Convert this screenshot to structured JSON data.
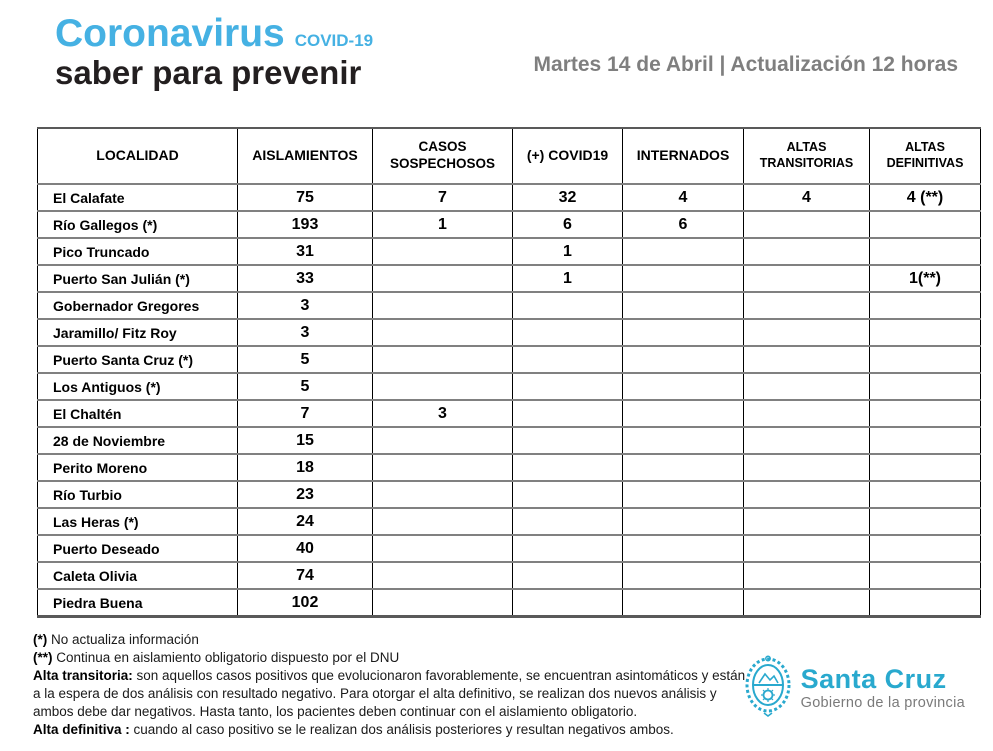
{
  "header": {
    "brand_title": "Coronavirus",
    "brand_sub": "COVID-19",
    "brand_tagline": "saber para prevenir",
    "update_text": "Martes 14 de Abril | Actualización 12 horas"
  },
  "table": {
    "columns": [
      "LOCALIDAD",
      "AISLAMIENTOS",
      "CASOS SOSPECHOSOS",
      "(+) COVID19",
      "INTERNADOS",
      "ALTAS TRANSITORIAS",
      "ALTAS DEFINITIVAS"
    ],
    "rows": [
      {
        "localidad": "El Calafate",
        "values": [
          "75",
          "7",
          "32",
          "4",
          "4",
          "4 (**)"
        ]
      },
      {
        "localidad": "Río Gallegos (*)",
        "values": [
          "193",
          "1",
          "6",
          "6",
          "",
          ""
        ]
      },
      {
        "localidad": "Pico Truncado",
        "values": [
          "31",
          "",
          "1",
          "",
          "",
          ""
        ]
      },
      {
        "localidad": "Puerto San Julián (*)",
        "values": [
          "33",
          "",
          "1",
          "",
          "",
          "1(**)"
        ]
      },
      {
        "localidad": "Gobernador Gregores",
        "values": [
          "3",
          "",
          "",
          "",
          "",
          ""
        ]
      },
      {
        "localidad": "Jaramillo/ Fitz Roy",
        "values": [
          "3",
          "",
          "",
          "",
          "",
          ""
        ]
      },
      {
        "localidad": "Puerto Santa Cruz (*)",
        "values": [
          "5",
          "",
          "",
          "",
          "",
          ""
        ]
      },
      {
        "localidad": "Los Antiguos (*)",
        "values": [
          "5",
          "",
          "",
          "",
          "",
          ""
        ]
      },
      {
        "localidad": "El Chaltén",
        "values": [
          "7",
          "3",
          "",
          "",
          "",
          ""
        ]
      },
      {
        "localidad": "28 de Noviembre",
        "values": [
          "15",
          "",
          "",
          "",
          "",
          ""
        ]
      },
      {
        "localidad": "Perito Moreno",
        "values": [
          "18",
          "",
          "",
          "",
          "",
          ""
        ]
      },
      {
        "localidad": "Río Turbio",
        "values": [
          "23",
          "",
          "",
          "",
          "",
          ""
        ]
      },
      {
        "localidad": "Las Heras (*)",
        "values": [
          "24",
          "",
          "",
          "",
          "",
          ""
        ]
      },
      {
        "localidad": "Puerto Deseado",
        "values": [
          "40",
          "",
          "",
          "",
          "",
          ""
        ]
      },
      {
        "localidad": "Caleta Olivia",
        "values": [
          "74",
          "",
          "",
          "",
          "",
          ""
        ]
      },
      {
        "localidad": "Piedra Buena",
        "values": [
          "102",
          "",
          "",
          "",
          "",
          ""
        ]
      }
    ]
  },
  "footnotes": [
    {
      "bold": "(*)",
      "text": " No actualiza información"
    },
    {
      "bold": "(**)",
      "text": " Continua en aislamiento obligatorio dispuesto por el DNU"
    },
    {
      "bold": "Alta transitoria:",
      "text": " son aquellos casos positivos que evolucionaron favorablemente, se encuentran asintomáticos y están a la espera de dos análisis con resultado negativo. Para otorgar el alta definitivo, se realizan dos nuevos análisis y ambos debe dar negativos. Hasta tanto, los pacientes deben continuar con el aislamiento obligatorio."
    },
    {
      "bold": "Alta definitiva :",
      "text": " cuando al caso positivo se le realizan dos análisis posteriores y resultan negativos ambos."
    }
  ],
  "logo": {
    "name": "Santa Cruz",
    "subtitle": "Gobierno de la provincia",
    "accent_color": "#29A9CE"
  }
}
